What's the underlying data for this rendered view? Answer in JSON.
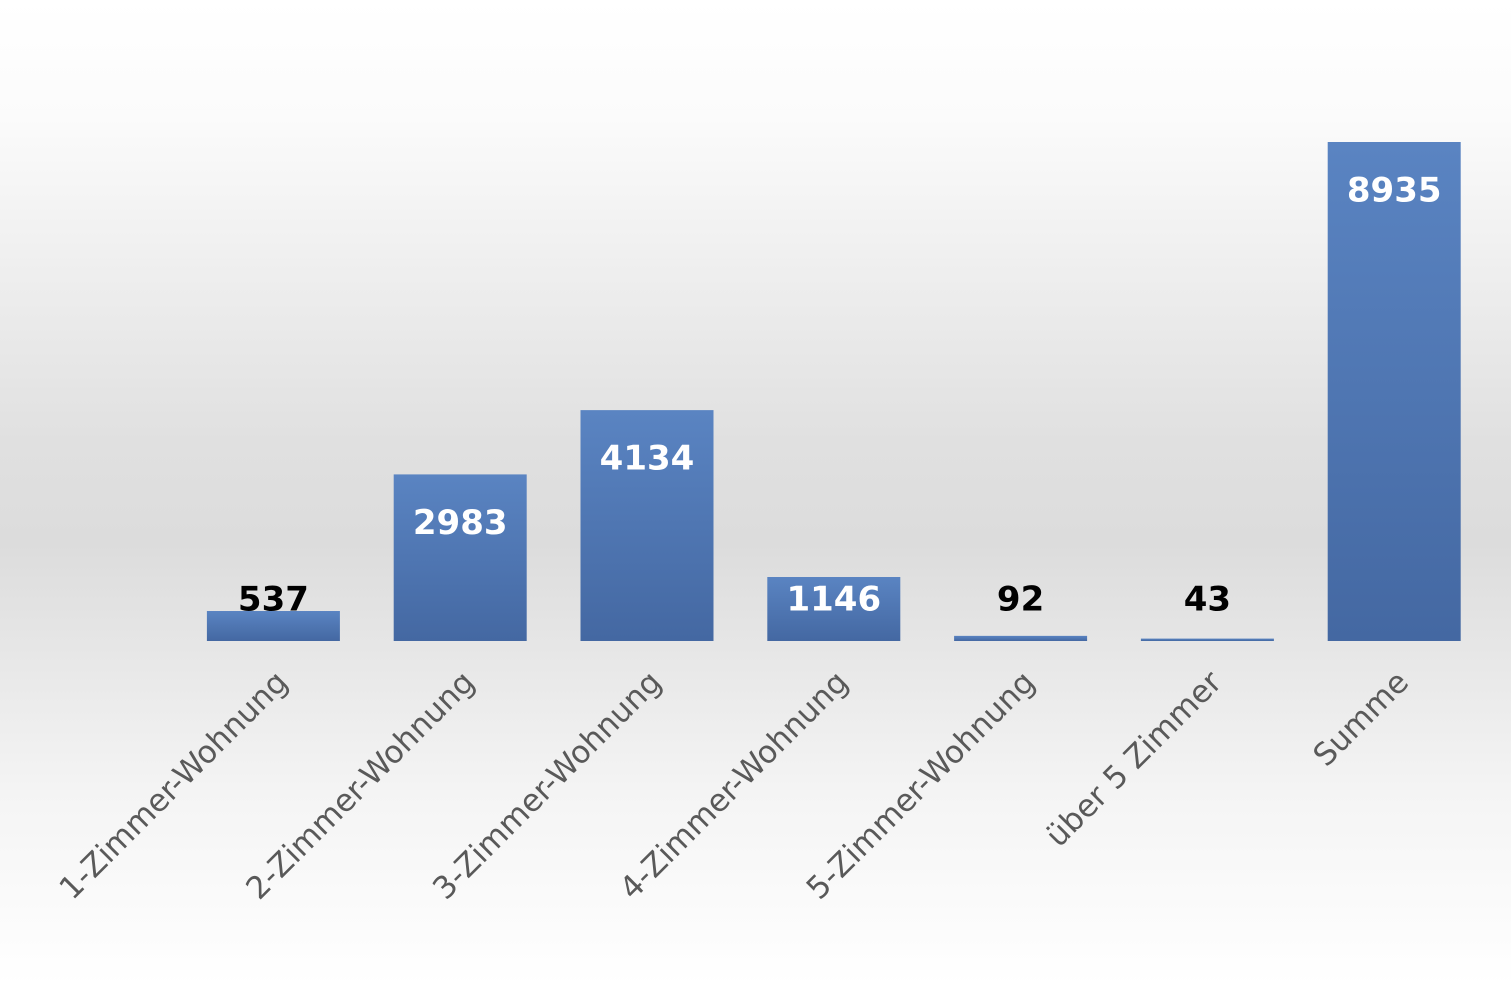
{
  "chart_data": {
    "type": "bar",
    "categories": [
      "1-Zimmer-Wohnung",
      "2-Zimmer-Wohnung",
      "3-Zimmer-Wohnung",
      "4-Zimmer-Wohnung",
      "5-Zimmer-Wohnung",
      "über 5 Zimmer",
      "Summe"
    ],
    "values": [
      537,
      2983,
      4134,
      1146,
      92,
      43,
      8935
    ],
    "color": "#4f77b5"
  }
}
